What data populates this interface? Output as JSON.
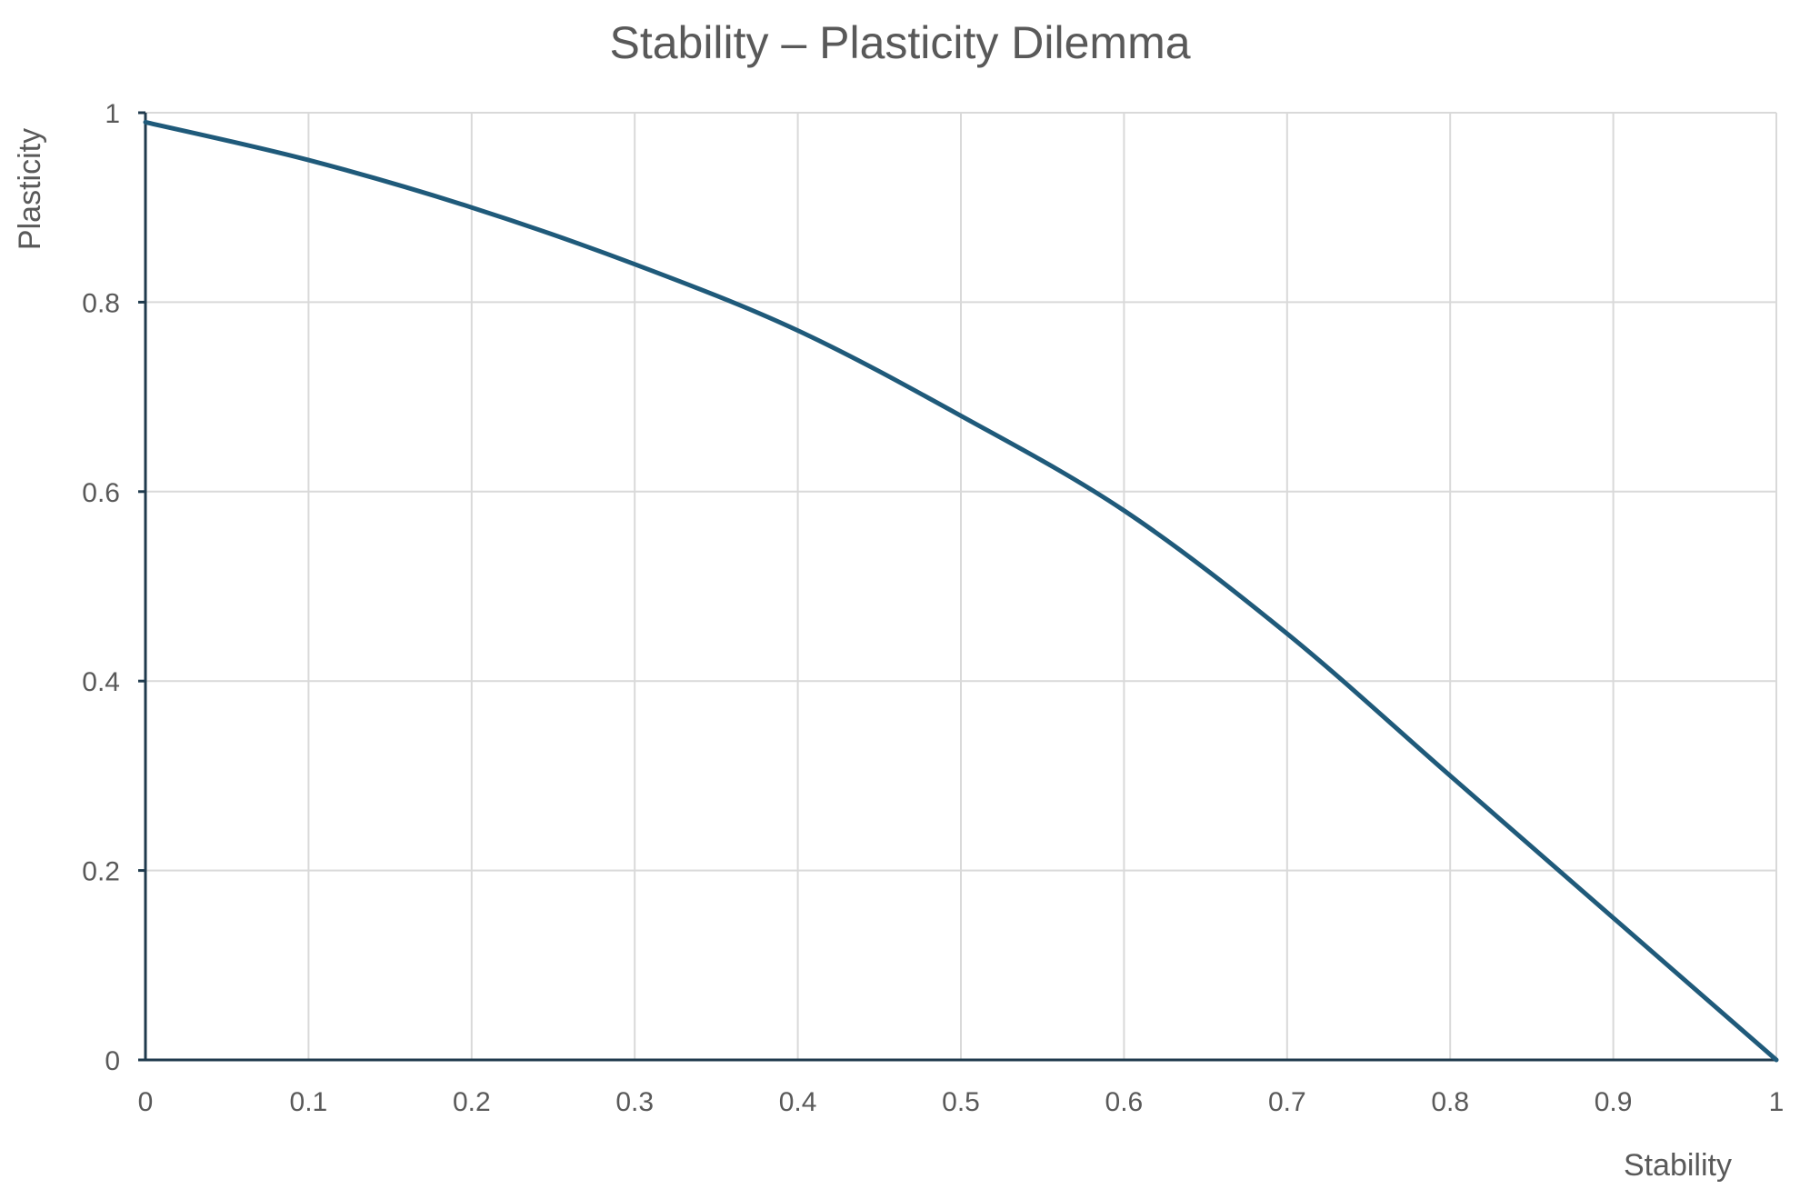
{
  "chart_data": {
    "type": "line",
    "title": "Stability – Plasticity Dilemma",
    "xlabel": "Stability",
    "ylabel": "Plasticity",
    "xlim": [
      0,
      1
    ],
    "ylim": [
      0,
      1
    ],
    "x_ticks": [
      "0",
      "0.1",
      "0.2",
      "0.3",
      "0.4",
      "0.5",
      "0.6",
      "0.7",
      "0.8",
      "0.9",
      "1"
    ],
    "y_ticks": [
      "0",
      "0.2",
      "0.4",
      "0.6",
      "0.8",
      "1"
    ],
    "grid": true,
    "legend": "none",
    "series": [
      {
        "color": "#1f5a7a",
        "x": [
          0,
          0.1,
          0.2,
          0.3,
          0.4,
          0.5,
          0.6,
          0.7,
          0.8,
          0.9,
          1.0
        ],
        "y": [
          0.99,
          0.95,
          0.9,
          0.84,
          0.77,
          0.68,
          0.58,
          0.45,
          0.3,
          0.15,
          0.0
        ]
      }
    ]
  },
  "colors": {
    "line": "#1f5a7a",
    "grid": "#d9d9d9",
    "axis": "#1f3a4d",
    "text": "#595959"
  }
}
